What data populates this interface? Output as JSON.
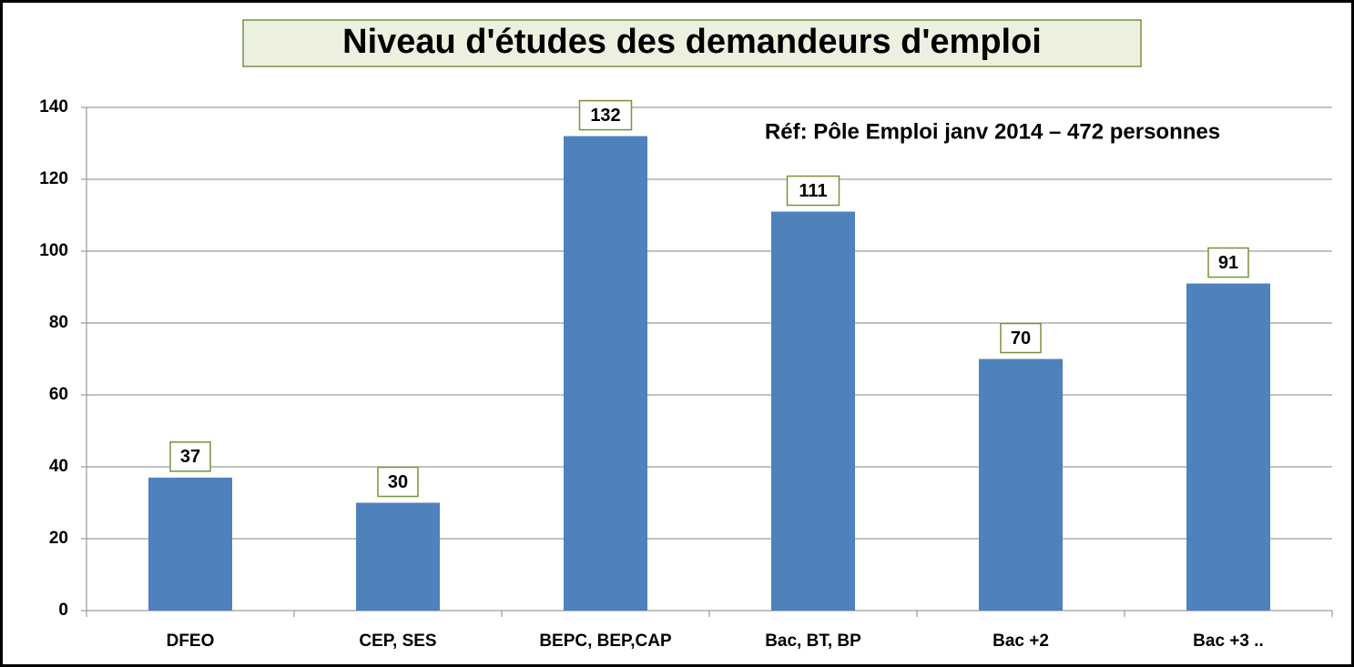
{
  "chart_data": {
    "type": "bar",
    "title": "Niveau d'études des demandeurs d'emploi",
    "annotation": "Réf: Pôle Emploi janv 2014 – 472 personnes",
    "categories": [
      "DFEO",
      "CEP, SES",
      "BEPC, BEP,CAP",
      "Bac, BT, BP",
      "Bac +2",
      "Bac +3 .."
    ],
    "values": [
      37,
      30,
      132,
      111,
      70,
      91
    ],
    "color": "#4f81bd",
    "ylim": [
      0,
      140
    ],
    "yticks": [
      0,
      20,
      40,
      60,
      80,
      100,
      120,
      140
    ],
    "grid": true
  }
}
